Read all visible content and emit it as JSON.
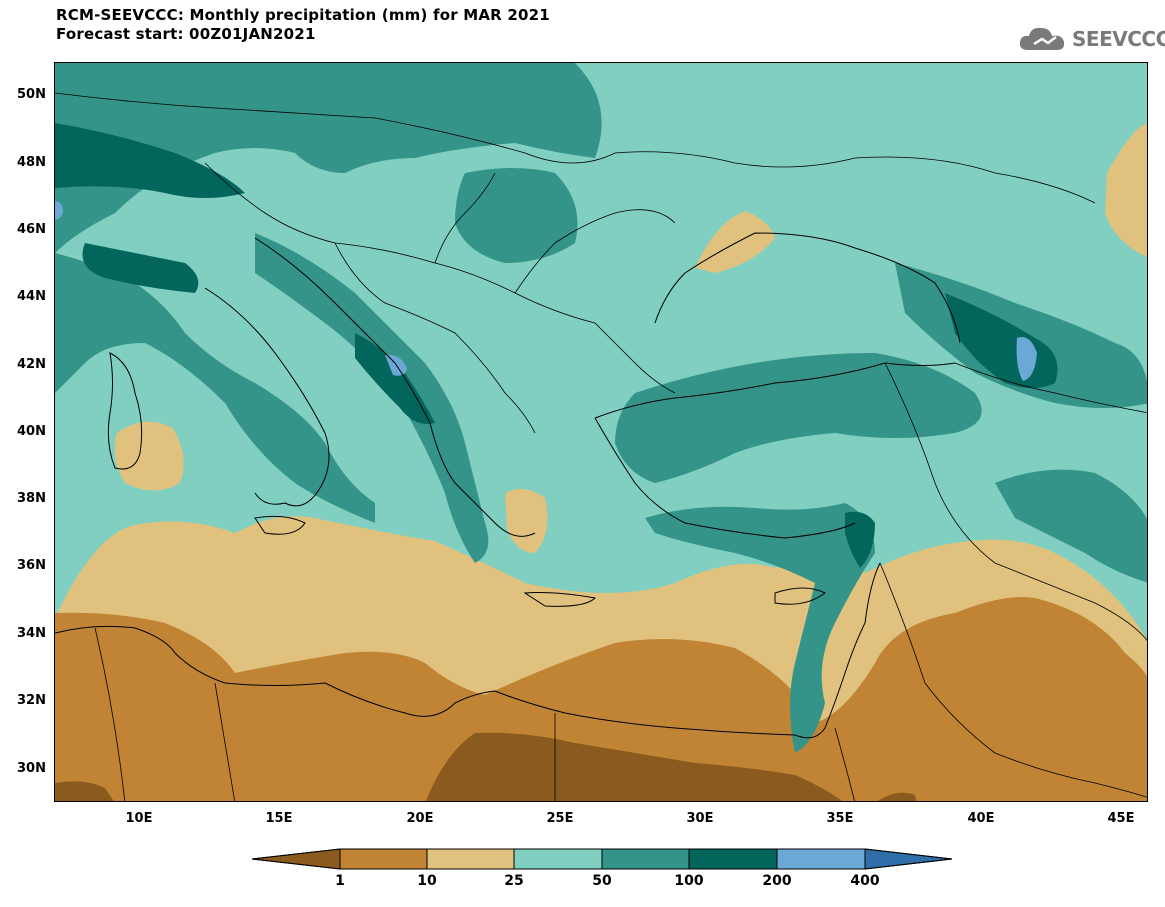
{
  "header": {
    "title_line1": "RCM-SEEVCCC: Monthly precipitation (mm) for MAR 2021",
    "title_line2": "Forecast start: 00Z01JAN2021",
    "logo_text": "SEEVCCC"
  },
  "axes": {
    "lat_labels": [
      "50N",
      "48N",
      "46N",
      "44N",
      "42N",
      "40N",
      "38N",
      "36N",
      "34N",
      "32N",
      "30N"
    ],
    "lon_labels": [
      "10E",
      "15E",
      "20E",
      "25E",
      "30E",
      "35E",
      "40E",
      "45E"
    ],
    "lat_range": [
      29,
      51
    ],
    "lon_range": [
      7,
      46
    ]
  },
  "colorbar": {
    "tick_labels": [
      "1",
      "10",
      "25",
      "50",
      "100",
      "200",
      "400"
    ],
    "colors": [
      "#8a5a1e",
      "#c08434",
      "#e0c27e",
      "#80cfc0",
      "#359489",
      "#03665d",
      "#6ba8d6",
      "#2f6ea8"
    ]
  }
}
